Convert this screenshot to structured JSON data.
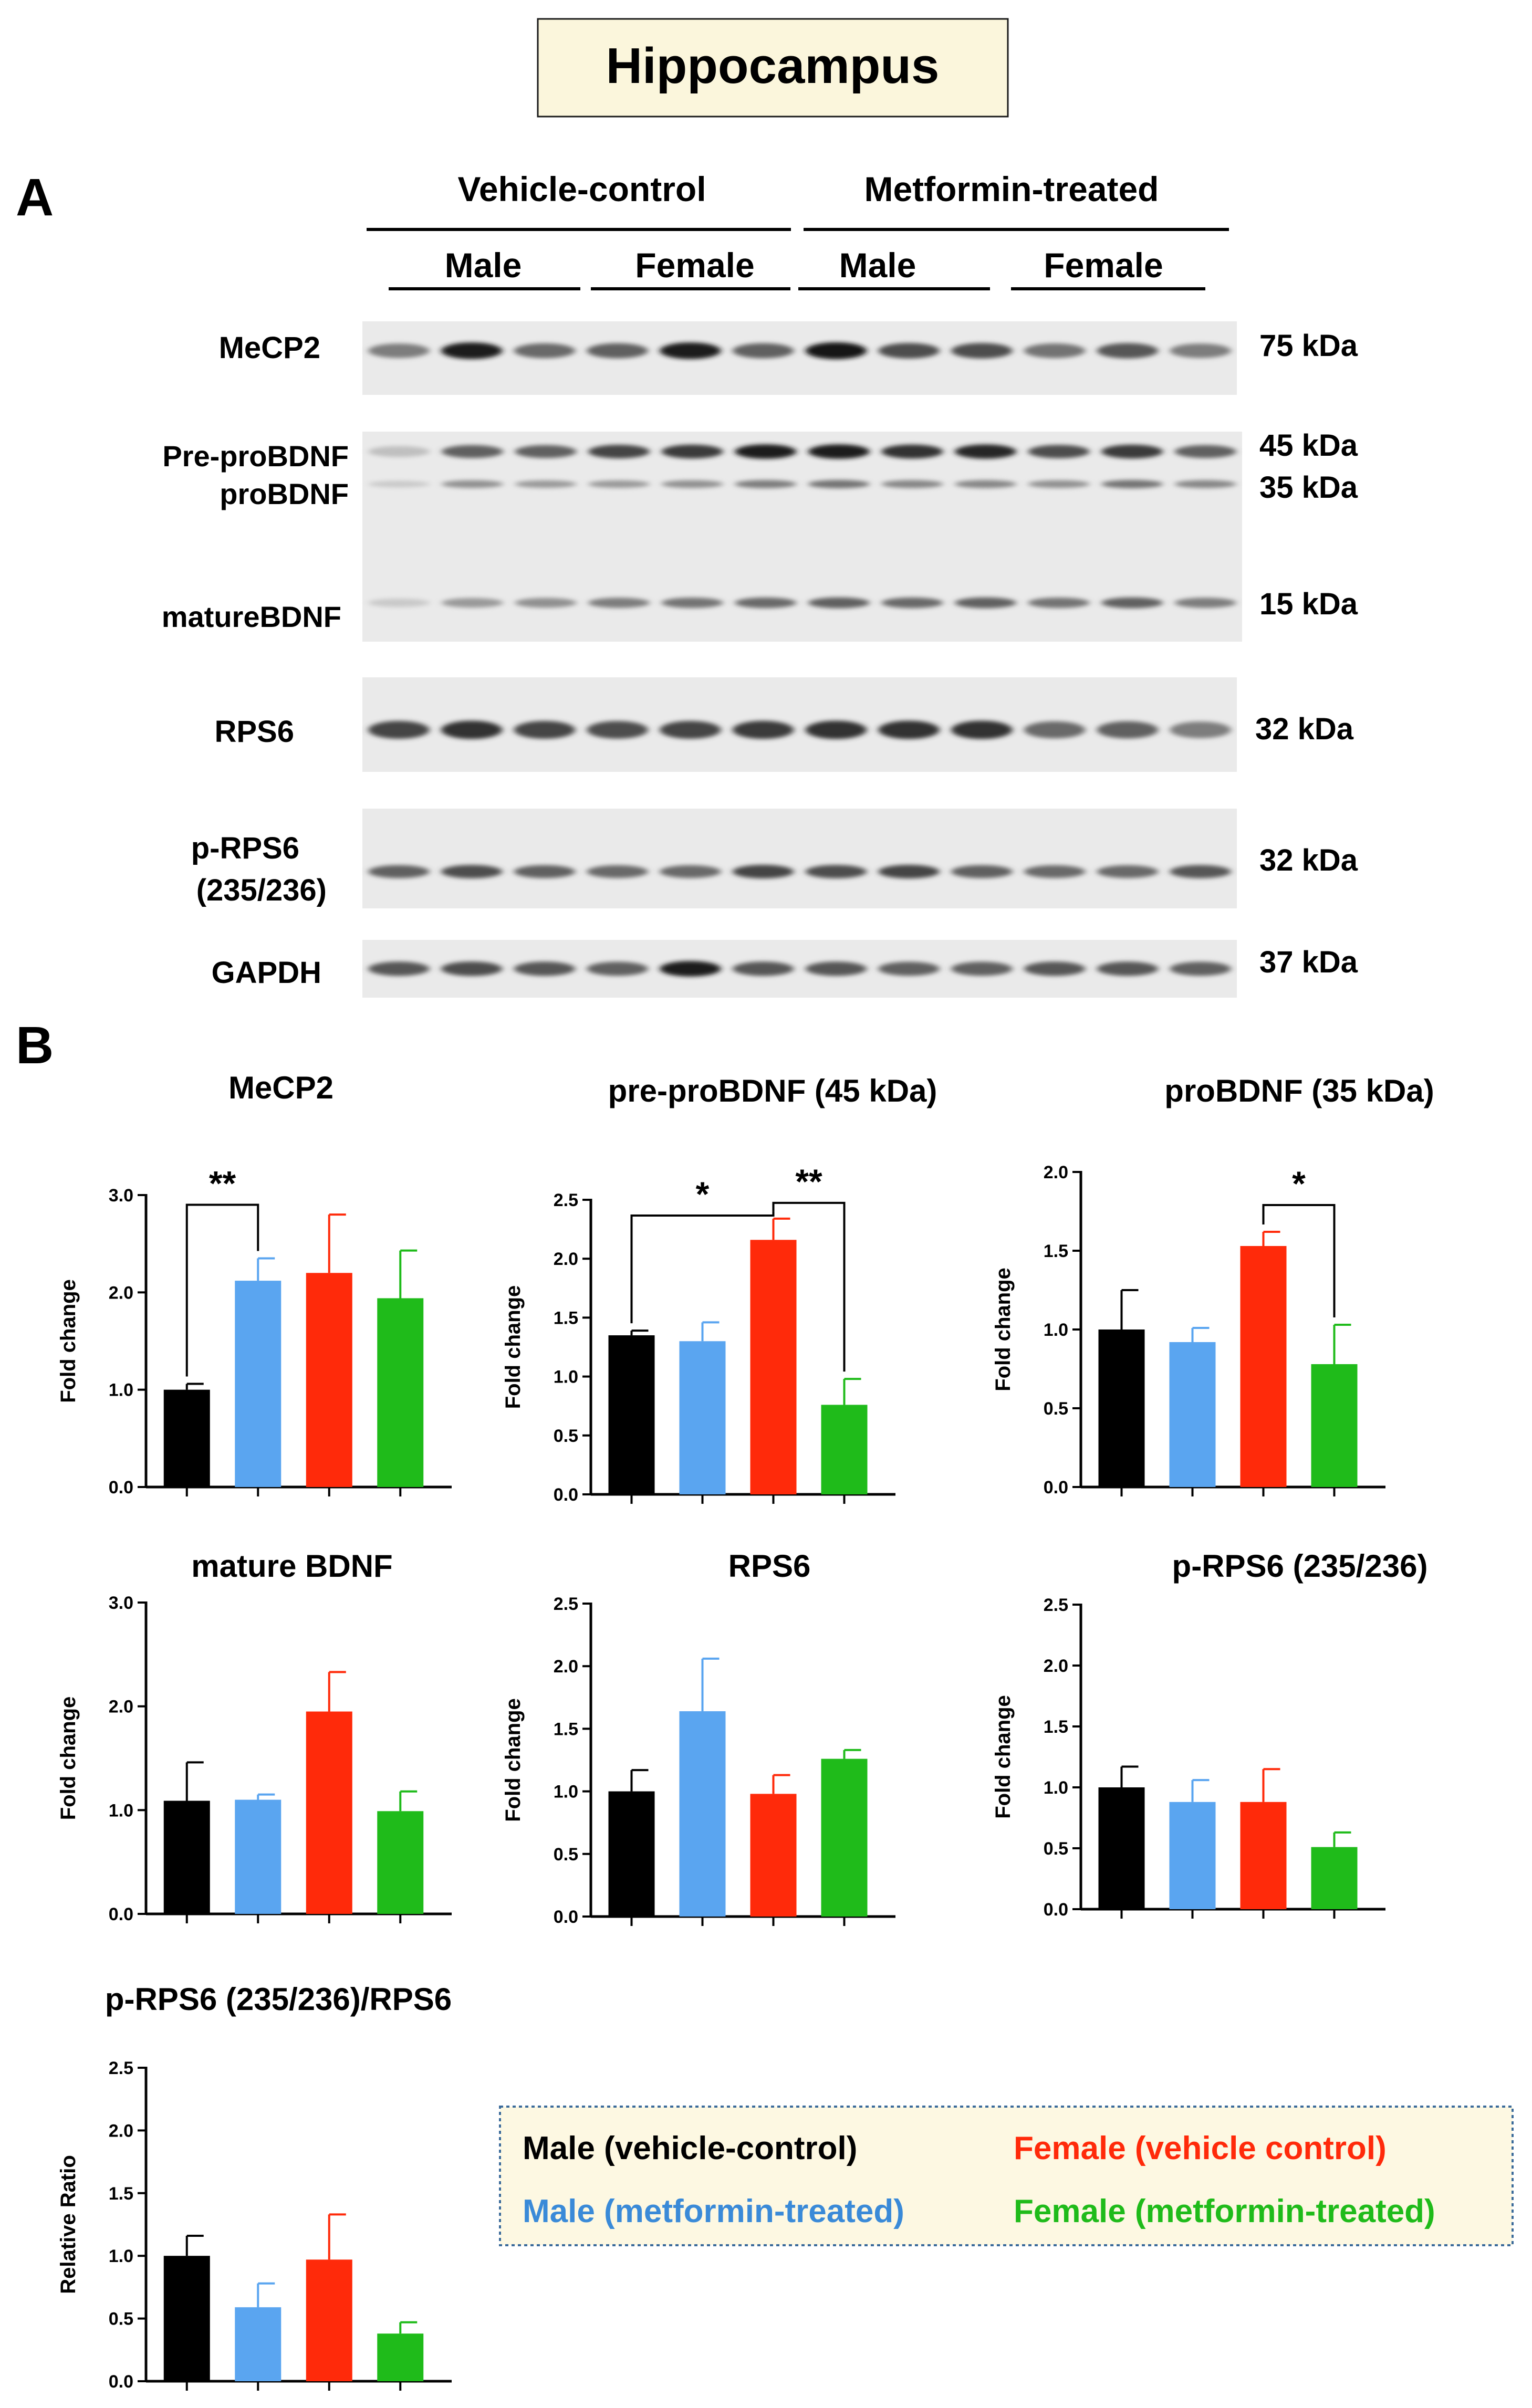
{
  "figure": {
    "title": "Hippocampus",
    "panel_a_label": "A",
    "panel_b_label": "B",
    "colors": {
      "male_vehicle": "#000000",
      "male_metformin": "#5aa5f0",
      "female_vehicle": "#ff2a0a",
      "female_metformin": "#1fbb1a",
      "title_box_fill": "#fbf6dc",
      "legend_fill": "#fdf8e2",
      "legend_border": "#3a6a9a"
    }
  },
  "blot": {
    "treatment_groups": [
      "Vehicle-control",
      "Metformin-treated"
    ],
    "sex_groups": [
      "Male",
      "Female",
      "Male",
      "Female"
    ],
    "proteins": [
      {
        "label": "MeCP2",
        "kda": "75 kDa"
      },
      {
        "label": "Pre-proBDNF",
        "kda": "45 kDa"
      },
      {
        "label": "proBDNF",
        "kda": "35 kDa"
      },
      {
        "label": "matureBDNF",
        "kda": "15 kDa"
      },
      {
        "label": "RPS6",
        "kda": "32 kDa"
      },
      {
        "label": "p-RPS6",
        "label_line2": "(235/236)",
        "kda": "32 kDa"
      },
      {
        "label": "GAPDH",
        "kda": "37 kDa"
      }
    ],
    "band_intensity": {
      "MeCP2": [
        0.45,
        0.95,
        0.55,
        0.6,
        0.95,
        0.6,
        1.0,
        0.7,
        0.7,
        0.5,
        0.65,
        0.45
      ],
      "preproBDNF": [
        0.1,
        0.6,
        0.6,
        0.75,
        0.8,
        0.95,
        0.95,
        0.85,
        0.9,
        0.7,
        0.8,
        0.6
      ],
      "proBDNF": [
        0.05,
        0.35,
        0.3,
        0.3,
        0.35,
        0.45,
        0.5,
        0.4,
        0.4,
        0.35,
        0.5,
        0.4
      ],
      "matureBDNF": [
        0.05,
        0.3,
        0.35,
        0.45,
        0.5,
        0.55,
        0.6,
        0.55,
        0.6,
        0.5,
        0.6,
        0.45
      ],
      "RPS6": [
        0.75,
        0.85,
        0.75,
        0.7,
        0.75,
        0.8,
        0.85,
        0.85,
        0.85,
        0.55,
        0.6,
        0.45
      ],
      "pRPS6": [
        0.6,
        0.7,
        0.6,
        0.55,
        0.55,
        0.75,
        0.7,
        0.75,
        0.6,
        0.55,
        0.55,
        0.65
      ],
      "GAPDH": [
        0.65,
        0.7,
        0.65,
        0.6,
        0.95,
        0.65,
        0.65,
        0.6,
        0.6,
        0.65,
        0.65,
        0.6
      ]
    }
  },
  "legend": {
    "male_vehicle": "Male (vehicle-control)",
    "female_vehicle": "Female (vehicle control)",
    "male_metformin": "Male (metformin-treated)",
    "female_metformin": "Female (metformin-treated)"
  },
  "chart_data": [
    {
      "type": "bar",
      "title": "MeCP2",
      "ylabel": "Fold change",
      "ylim": [
        0,
        3.0
      ],
      "yticks": [
        0.0,
        1.0,
        2.0,
        3.0
      ],
      "ytick_labels": [
        "0.0",
        "1.0",
        "2.0",
        "3.0"
      ],
      "values": [
        1.0,
        2.12,
        2.2,
        1.94
      ],
      "errors": [
        0.06,
        0.23,
        0.6,
        0.49
      ],
      "significance": [
        {
          "from": 0,
          "to": 1,
          "label": "**"
        }
      ]
    },
    {
      "type": "bar",
      "title": "pre-proBDNF  (45 kDa)",
      "ylabel": "Fold change",
      "ylim": [
        0,
        2.5
      ],
      "yticks": [
        0.0,
        0.5,
        1.0,
        1.5,
        2.0,
        2.5
      ],
      "ytick_labels": [
        "0.0",
        "0.5",
        "1.0",
        "1.5",
        "2.0",
        "2.5"
      ],
      "values": [
        1.35,
        1.3,
        2.16,
        0.76
      ],
      "errors": [
        0.04,
        0.16,
        0.18,
        0.22
      ],
      "significance": [
        {
          "from": 0,
          "to": 2,
          "label": "*"
        },
        {
          "from": 2,
          "to": 3,
          "label": "**"
        }
      ]
    },
    {
      "type": "bar",
      "title": "proBDNF  (35 kDa)",
      "ylabel": "Fold change",
      "ylim": [
        0,
        2.0
      ],
      "yticks": [
        0.0,
        0.5,
        1.0,
        1.5,
        2.0
      ],
      "ytick_labels": [
        "0.0",
        "0.5",
        "1.0",
        "1.5",
        "2.0"
      ],
      "values": [
        1.0,
        0.92,
        1.53,
        0.78
      ],
      "errors": [
        0.25,
        0.09,
        0.09,
        0.25
      ],
      "significance": [
        {
          "from": 2,
          "to": 3,
          "label": "*"
        }
      ]
    },
    {
      "type": "bar",
      "title": "mature BDNF",
      "ylabel": "Fold change",
      "ylim": [
        0,
        3.0
      ],
      "yticks": [
        0.0,
        1.0,
        2.0,
        3.0
      ],
      "ytick_labels": [
        "0.0",
        "1.0",
        "2.0",
        "3.0"
      ],
      "values": [
        1.09,
        1.1,
        1.95,
        0.99
      ],
      "errors": [
        0.37,
        0.05,
        0.38,
        0.19
      ],
      "significance": []
    },
    {
      "type": "bar",
      "title": "RPS6",
      "ylabel": "Fold change",
      "ylim": [
        0,
        2.5
      ],
      "yticks": [
        0.0,
        0.5,
        1.0,
        1.5,
        2.0,
        2.5
      ],
      "ytick_labels": [
        "0.0",
        "0.5",
        "1.0",
        "1.5",
        "2.0",
        "2.5"
      ],
      "values": [
        1.0,
        1.64,
        0.98,
        1.26
      ],
      "errors": [
        0.17,
        0.42,
        0.15,
        0.07
      ],
      "significance": []
    },
    {
      "type": "bar",
      "title": "p-RPS6 (235/236)",
      "ylabel": "Fold change",
      "ylim": [
        0,
        2.5
      ],
      "yticks": [
        0.0,
        0.5,
        1.0,
        1.5,
        2.0,
        2.5
      ],
      "ytick_labels": [
        "0.0",
        "0.5",
        "1.0",
        "1.5",
        "2.0",
        "2.5"
      ],
      "values": [
        1.0,
        0.88,
        0.88,
        0.51
      ],
      "errors": [
        0.17,
        0.18,
        0.27,
        0.12
      ],
      "significance": []
    },
    {
      "type": "bar",
      "title": "p-RPS6 (235/236)/RPS6",
      "ylabel": "Relative Ratio",
      "ylim": [
        0,
        2.5
      ],
      "yticks": [
        0.0,
        0.5,
        1.0,
        1.5,
        2.0,
        2.5
      ],
      "ytick_labels": [
        "0.0",
        "0.5",
        "1.0",
        "1.5",
        "2.0",
        "2.5"
      ],
      "values": [
        1.0,
        0.59,
        0.97,
        0.38
      ],
      "errors": [
        0.16,
        0.19,
        0.36,
        0.09
      ],
      "significance": []
    }
  ]
}
